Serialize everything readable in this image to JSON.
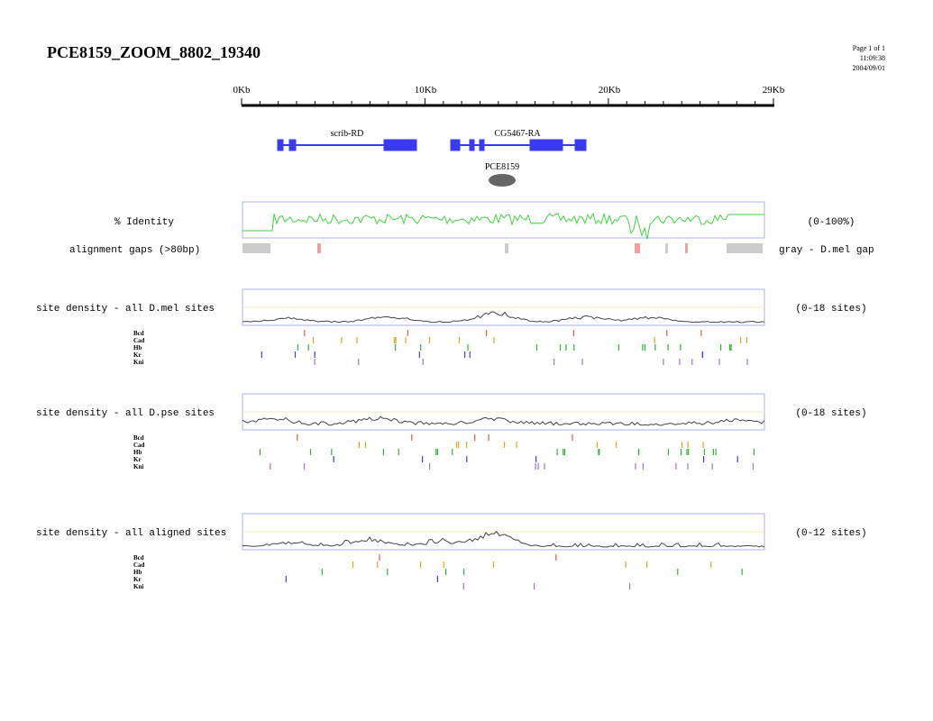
{
  "header": {
    "title": "PCE8159_ZOOM_8802_19340",
    "page": "Page 1 of 1",
    "time": "11:09:38",
    "date": "2004/09/01"
  },
  "ruler": {
    "labels": [
      "0Kb",
      "10Kb",
      "20Kb",
      "29Kb"
    ]
  },
  "genes": [
    {
      "label": "scrib-RD"
    },
    {
      "label": "CG5467-RA"
    }
  ],
  "region": {
    "label": "PCE8159"
  },
  "identity": {
    "label": "% Identity",
    "range": "(0-100%)"
  },
  "gaps": {
    "label": "alignment gaps (>80bp)",
    "legend": "gray - D.mel gap"
  },
  "panels": [
    {
      "label": "site density - all D.mel sites",
      "range": "(0-18 sites)",
      "factors": [
        "Bcd",
        "Cad",
        "Hb",
        "Kr",
        "Kni"
      ]
    },
    {
      "label": "site density - all D.pse sites",
      "range": "(0-18 sites)",
      "factors": [
        "Bcd",
        "Cad",
        "Hb",
        "Kr",
        "Kni"
      ]
    },
    {
      "label": "site density - all aligned sites",
      "range": "(0-12 sites)",
      "factors": [
        "Bcd",
        "Cad",
        "Hb",
        "Kr",
        "Kni"
      ]
    }
  ]
}
